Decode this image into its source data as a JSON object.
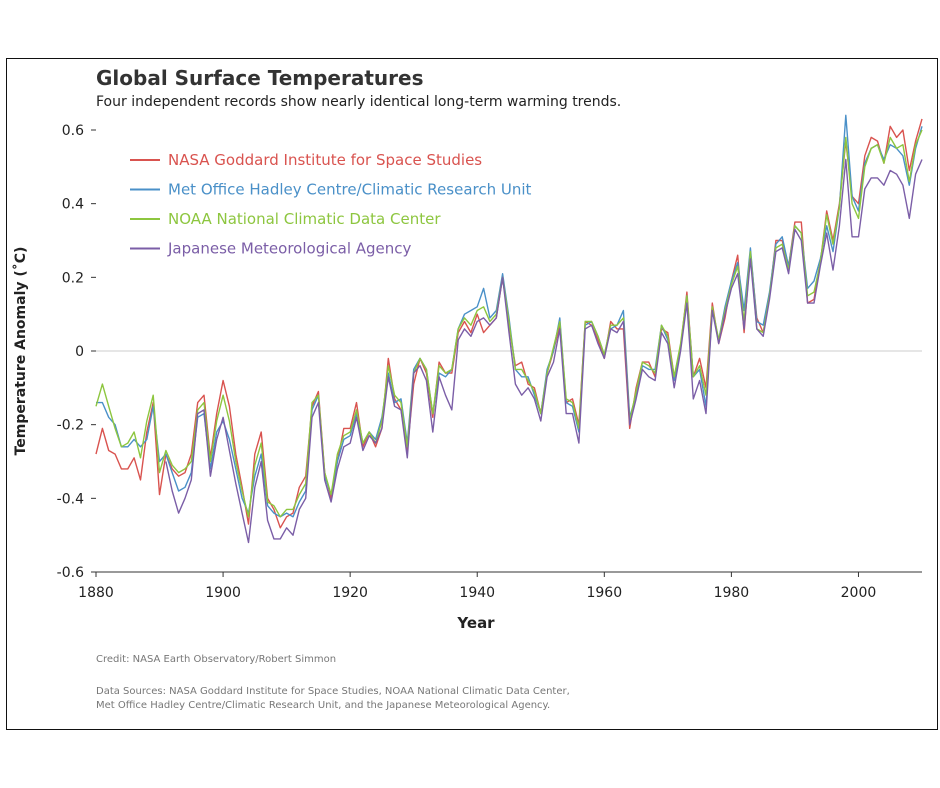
{
  "header": {
    "title": "Global Surface Temperatures",
    "subtitle": "Four independent records show nearly identical long-term warming trends."
  },
  "footer": {
    "credit": "Credit: NASA Earth Observatory/Robert Simmon",
    "sources_line1": "Data Sources: NASA Goddard Institute for Space Studies, NOAA National Climatic Data Center,",
    "sources_line2": "Met Office Hadley Centre/Climatic Research Unit, and the Japanese Meteorological Agency."
  },
  "chart_data": {
    "type": "line",
    "title": "Global Surface Temperatures",
    "subtitle": "Four independent records show nearly identical long-term warming trends.",
    "xlabel": "Year",
    "ylabel": "Temperature Anomaly (˚C)",
    "xlim": [
      1880,
      2010
    ],
    "ylim": [
      -0.6,
      0.65
    ],
    "xticks": [
      1880,
      1900,
      1920,
      1940,
      1960,
      1980,
      2000
    ],
    "yticks": [
      -0.6,
      -0.4,
      -0.2,
      0,
      0.2,
      0.4,
      0.6
    ],
    "ytick_labels": [
      "-0.6",
      "-0.4",
      "-0.2",
      "0",
      "0.2",
      "0.4",
      "0.6"
    ],
    "grid": false,
    "zero_line": true,
    "legend_position": "top-left",
    "x": [
      1880,
      1881,
      1882,
      1883,
      1884,
      1885,
      1886,
      1887,
      1888,
      1889,
      1890,
      1891,
      1892,
      1893,
      1894,
      1895,
      1896,
      1897,
      1898,
      1899,
      1900,
      1901,
      1902,
      1903,
      1904,
      1905,
      1906,
      1907,
      1908,
      1909,
      1910,
      1911,
      1912,
      1913,
      1914,
      1915,
      1916,
      1917,
      1918,
      1919,
      1920,
      1921,
      1922,
      1923,
      1924,
      1925,
      1926,
      1927,
      1928,
      1929,
      1930,
      1931,
      1932,
      1933,
      1934,
      1935,
      1936,
      1937,
      1938,
      1939,
      1940,
      1941,
      1942,
      1943,
      1944,
      1945,
      1946,
      1947,
      1948,
      1949,
      1950,
      1951,
      1952,
      1953,
      1954,
      1955,
      1956,
      1957,
      1958,
      1959,
      1960,
      1961,
      1962,
      1963,
      1964,
      1965,
      1966,
      1967,
      1968,
      1969,
      1970,
      1971,
      1972,
      1973,
      1974,
      1975,
      1976,
      1977,
      1978,
      1979,
      1980,
      1981,
      1982,
      1983,
      1984,
      1985,
      1986,
      1987,
      1988,
      1989,
      1990,
      1991,
      1992,
      1993,
      1994,
      1995,
      1996,
      1997,
      1998,
      1999,
      2000,
      2001,
      2002,
      2003,
      2004,
      2005,
      2006,
      2007,
      2008,
      2009,
      2010
    ],
    "series": [
      {
        "name": "NASA Goddard Institute for Space Studies",
        "color": "#d9534f",
        "values": [
          -0.28,
          -0.21,
          -0.27,
          -0.28,
          -0.32,
          -0.32,
          -0.29,
          -0.35,
          -0.22,
          -0.14,
          -0.39,
          -0.28,
          -0.32,
          -0.34,
          -0.33,
          -0.28,
          -0.14,
          -0.12,
          -0.29,
          -0.17,
          -0.08,
          -0.15,
          -0.28,
          -0.37,
          -0.47,
          -0.28,
          -0.22,
          -0.4,
          -0.43,
          -0.48,
          -0.45,
          -0.44,
          -0.37,
          -0.34,
          -0.15,
          -0.11,
          -0.33,
          -0.4,
          -0.3,
          -0.21,
          -0.21,
          -0.14,
          -0.26,
          -0.22,
          -0.26,
          -0.21,
          -0.02,
          -0.13,
          -0.16,
          -0.27,
          -0.09,
          -0.02,
          -0.06,
          -0.18,
          -0.03,
          -0.06,
          -0.06,
          0.05,
          0.08,
          0.05,
          0.1,
          0.05,
          0.07,
          0.09,
          0.2,
          0.07,
          -0.04,
          -0.03,
          -0.09,
          -0.1,
          -0.17,
          -0.06,
          0.0,
          0.07,
          -0.14,
          -0.13,
          -0.2,
          0.08,
          0.07,
          0.03,
          -0.02,
          0.08,
          0.06,
          0.06,
          -0.21,
          -0.1,
          -0.03,
          -0.03,
          -0.07,
          0.06,
          0.05,
          -0.07,
          0.01,
          0.16,
          -0.07,
          -0.02,
          -0.1,
          0.13,
          0.02,
          0.09,
          0.19,
          0.26,
          0.05,
          0.27,
          0.09,
          0.05,
          0.15,
          0.3,
          0.3,
          0.23,
          0.35,
          0.35,
          0.13,
          0.14,
          0.24,
          0.38,
          0.3,
          0.4,
          0.57,
          0.42,
          0.4,
          0.53,
          0.58,
          0.57,
          0.51,
          0.61,
          0.58,
          0.6,
          0.49,
          0.57,
          0.63
        ]
      },
      {
        "name": "Met Office Hadley Centre/Climatic Research Unit",
        "color": "#4a90c8",
        "values": [
          -0.14,
          -0.14,
          -0.18,
          -0.2,
          -0.26,
          -0.26,
          -0.24,
          -0.26,
          -0.24,
          -0.15,
          -0.3,
          -0.28,
          -0.33,
          -0.38,
          -0.37,
          -0.33,
          -0.18,
          -0.17,
          -0.32,
          -0.22,
          -0.19,
          -0.24,
          -0.32,
          -0.4,
          -0.44,
          -0.34,
          -0.28,
          -0.42,
          -0.44,
          -0.45,
          -0.44,
          -0.45,
          -0.41,
          -0.38,
          -0.16,
          -0.12,
          -0.34,
          -0.39,
          -0.3,
          -0.24,
          -0.23,
          -0.17,
          -0.25,
          -0.22,
          -0.24,
          -0.18,
          -0.06,
          -0.14,
          -0.13,
          -0.25,
          -0.05,
          -0.02,
          -0.05,
          -0.17,
          -0.06,
          -0.07,
          -0.05,
          0.06,
          0.1,
          0.11,
          0.12,
          0.17,
          0.09,
          0.11,
          0.21,
          0.09,
          -0.05,
          -0.07,
          -0.07,
          -0.12,
          -0.17,
          -0.05,
          0.0,
          0.09,
          -0.14,
          -0.15,
          -0.22,
          0.07,
          0.08,
          0.04,
          -0.01,
          0.06,
          0.07,
          0.11,
          -0.18,
          -0.12,
          -0.04,
          -0.05,
          -0.05,
          0.07,
          0.03,
          -0.08,
          0.01,
          0.15,
          -0.07,
          -0.05,
          -0.15,
          0.11,
          0.03,
          0.12,
          0.19,
          0.24,
          0.11,
          0.28,
          0.08,
          0.07,
          0.16,
          0.29,
          0.31,
          0.23,
          0.34,
          0.32,
          0.17,
          0.19,
          0.25,
          0.34,
          0.27,
          0.39,
          0.64,
          0.42,
          0.38,
          0.51,
          0.55,
          0.56,
          0.52,
          0.56,
          0.55,
          0.53,
          0.45,
          0.55,
          0.61
        ]
      },
      {
        "name": "NOAA National Climatic Data Center",
        "color": "#8dc63f",
        "values": [
          -0.15,
          -0.09,
          -0.15,
          -0.21,
          -0.26,
          -0.25,
          -0.22,
          -0.29,
          -0.19,
          -0.12,
          -0.33,
          -0.27,
          -0.31,
          -0.33,
          -0.32,
          -0.3,
          -0.16,
          -0.14,
          -0.3,
          -0.19,
          -0.12,
          -0.19,
          -0.3,
          -0.38,
          -0.45,
          -0.31,
          -0.25,
          -0.41,
          -0.42,
          -0.45,
          -0.43,
          -0.43,
          -0.39,
          -0.36,
          -0.14,
          -0.12,
          -0.33,
          -0.39,
          -0.28,
          -0.23,
          -0.22,
          -0.16,
          -0.25,
          -0.22,
          -0.25,
          -0.19,
          -0.04,
          -0.12,
          -0.14,
          -0.26,
          -0.06,
          -0.02,
          -0.05,
          -0.17,
          -0.04,
          -0.06,
          -0.05,
          0.06,
          0.09,
          0.07,
          0.11,
          0.12,
          0.08,
          0.1,
          0.2,
          0.08,
          -0.05,
          -0.05,
          -0.08,
          -0.11,
          -0.17,
          -0.06,
          0.01,
          0.08,
          -0.13,
          -0.14,
          -0.21,
          0.08,
          0.08,
          0.04,
          -0.01,
          0.07,
          0.07,
          0.09,
          -0.19,
          -0.11,
          -0.03,
          -0.04,
          -0.06,
          0.07,
          0.04,
          -0.07,
          0.02,
          0.15,
          -0.07,
          -0.04,
          -0.12,
          0.12,
          0.03,
          0.11,
          0.18,
          0.23,
          0.08,
          0.27,
          0.06,
          0.05,
          0.15,
          0.28,
          0.29,
          0.22,
          0.34,
          0.32,
          0.15,
          0.16,
          0.24,
          0.37,
          0.29,
          0.39,
          0.58,
          0.4,
          0.36,
          0.5,
          0.55,
          0.56,
          0.51,
          0.58,
          0.55,
          0.56,
          0.46,
          0.56,
          0.6
        ]
      },
      {
        "name": "Japanese Meteorological Agency",
        "color": "#7b5ea7",
        "values": [
          null,
          null,
          null,
          null,
          null,
          null,
          null,
          null,
          null,
          null,
          null,
          -0.3,
          -0.38,
          -0.44,
          -0.4,
          -0.35,
          -0.17,
          -0.16,
          -0.34,
          -0.24,
          -0.18,
          -0.27,
          -0.36,
          -0.44,
          -0.52,
          -0.37,
          -0.3,
          -0.46,
          -0.51,
          -0.51,
          -0.48,
          -0.5,
          -0.43,
          -0.4,
          -0.18,
          -0.14,
          -0.35,
          -0.41,
          -0.32,
          -0.26,
          -0.25,
          -0.18,
          -0.27,
          -0.23,
          -0.25,
          -0.21,
          -0.07,
          -0.15,
          -0.16,
          -0.29,
          -0.06,
          -0.04,
          -0.08,
          -0.22,
          -0.07,
          -0.12,
          -0.16,
          0.03,
          0.06,
          0.04,
          0.08,
          0.09,
          0.07,
          0.09,
          0.2,
          0.05,
          -0.09,
          -0.12,
          -0.1,
          -0.13,
          -0.19,
          -0.07,
          -0.03,
          0.06,
          -0.17,
          -0.17,
          -0.25,
          0.06,
          0.07,
          0.02,
          -0.02,
          0.06,
          0.05,
          0.08,
          -0.2,
          -0.13,
          -0.05,
          -0.07,
          -0.08,
          0.05,
          0.02,
          -0.1,
          0.0,
          0.13,
          -0.13,
          -0.08,
          -0.17,
          0.11,
          0.02,
          0.1,
          0.17,
          0.21,
          0.06,
          0.25,
          0.06,
          0.04,
          0.14,
          0.27,
          0.28,
          0.21,
          0.33,
          0.3,
          0.13,
          0.13,
          0.23,
          0.32,
          0.22,
          0.34,
          0.52,
          0.31,
          0.31,
          0.44,
          0.47,
          0.47,
          0.45,
          0.49,
          0.48,
          0.45,
          0.36,
          0.48,
          0.52
        ]
      }
    ]
  }
}
